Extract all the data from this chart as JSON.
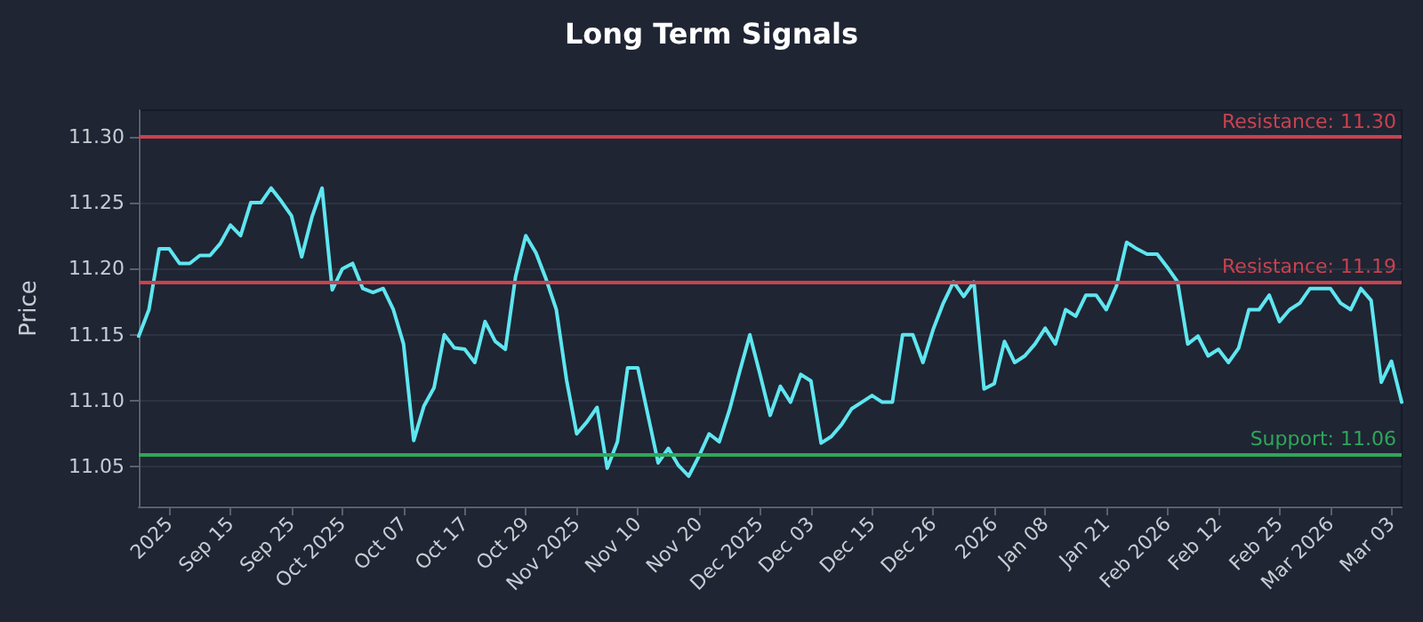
{
  "chart_data": {
    "type": "line",
    "title": "Long Term Signals",
    "ylabel": "Price",
    "categories": [
      null,
      null,
      null,
      "2025",
      null,
      null,
      null,
      null,
      null,
      "Sep 15",
      null,
      null,
      null,
      null,
      null,
      "Sep 25",
      null,
      null,
      null,
      null,
      "Oct 2025",
      null,
      null,
      null,
      null,
      null,
      "Oct 07",
      null,
      null,
      null,
      null,
      null,
      "Oct 17",
      null,
      null,
      null,
      null,
      null,
      "Oct 29",
      null,
      null,
      null,
      null,
      "Nov 2025",
      null,
      null,
      null,
      null,
      null,
      "Nov 10",
      null,
      null,
      null,
      null,
      null,
      "Nov 20",
      null,
      null,
      null,
      null,
      null,
      "Dec 2025",
      null,
      null,
      null,
      null,
      "Dec 03",
      null,
      null,
      null,
      null,
      null,
      "Dec 15",
      null,
      null,
      null,
      null,
      null,
      "Dec 26",
      null,
      null,
      null,
      null,
      null,
      "2026",
      null,
      null,
      null,
      null,
      "Jan 08",
      null,
      null,
      null,
      null,
      null,
      "Jan 21",
      null,
      null,
      null,
      null,
      null,
      "Feb 2026",
      null,
      null,
      null,
      null,
      "Feb 12",
      null,
      null,
      null,
      null,
      null,
      "Feb 25",
      null,
      null,
      null,
      null,
      "Mar 2026",
      null,
      null,
      null,
      null,
      null,
      "Mar 03",
      null
    ],
    "series": [
      {
        "color": "#5ee6f0",
        "values": [
          11.149,
          11.169,
          11.215,
          11.215,
          11.204,
          11.204,
          11.21,
          11.21,
          11.219,
          11.233,
          11.225,
          11.25,
          11.25,
          11.261,
          11.251,
          11.24,
          11.209,
          11.239,
          11.261,
          11.184,
          11.2,
          11.204,
          11.185,
          11.182,
          11.185,
          11.169,
          11.143,
          11.07,
          11.096,
          11.11,
          11.15,
          11.14,
          11.139,
          11.129,
          11.16,
          11.145,
          11.139,
          11.194,
          11.225,
          11.212,
          11.192,
          11.169,
          11.116,
          11.075,
          11.084,
          11.095,
          11.049,
          11.069,
          11.125,
          11.125,
          11.089,
          11.053,
          11.064,
          11.051,
          11.043,
          11.058,
          11.075,
          11.069,
          11.093,
          11.122,
          11.15,
          11.12,
          11.089,
          11.111,
          11.099,
          11.12,
          11.115,
          11.068,
          11.073,
          11.082,
          11.094,
          11.099,
          11.104,
          11.099,
          11.099,
          11.15,
          11.15,
          11.129,
          11.154,
          11.174,
          11.19,
          11.179,
          11.19,
          11.109,
          11.113,
          11.145,
          11.129,
          11.134,
          11.143,
          11.155,
          11.143,
          11.169,
          11.164,
          11.18,
          11.18,
          11.169,
          11.187,
          11.22,
          11.215,
          11.211,
          11.211,
          11.201,
          11.19,
          11.143,
          11.149,
          11.134,
          11.139,
          11.129,
          11.14,
          11.169,
          11.169,
          11.18,
          11.16,
          11.169,
          11.174,
          11.185,
          11.185,
          11.185,
          11.174,
          11.169,
          11.185,
          11.176,
          11.114,
          11.13,
          11.099
        ]
      }
    ],
    "ylim": [
      11.02,
      11.32
    ],
    "yticks": [
      11.05,
      {
        "value": 11.1,
        "label": "11.10"
      },
      11.15,
      {
        "value": 11.2,
        "label": "11.20"
      },
      11.25,
      {
        "value": 11.3,
        "label": "11.30"
      }
    ],
    "grid": "y",
    "marker": "none",
    "line_style": "solid",
    "ref_lines": [
      {
        "axis": "y",
        "value": 11.3,
        "label": "Resistance: 11.30",
        "color": "#c9424f"
      },
      {
        "axis": "y",
        "value": 11.19,
        "label": "Resistance: 11.19",
        "color": "#c9424f"
      },
      {
        "axis": "y",
        "value": 11.06,
        "label": "Support: 11.06",
        "color": "#2fa65a"
      }
    ]
  }
}
